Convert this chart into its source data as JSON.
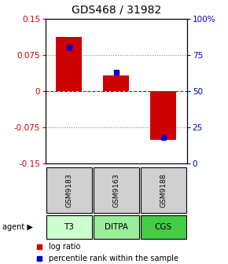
{
  "title": "GDS468 / 31982",
  "bar_values": [
    0.112,
    0.033,
    -0.1
  ],
  "percentile_values": [
    80,
    63,
    18
  ],
  "bar_color": "#cc0000",
  "percentile_color": "#0000cc",
  "sample_labels": [
    "GSM9183",
    "GSM9163",
    "GSM9188"
  ],
  "agent_labels": [
    "T3",
    "DITPA",
    "CGS"
  ],
  "agent_colors": [
    "#ccffcc",
    "#99ee99",
    "#44cc44"
  ],
  "ylim_left": [
    -0.15,
    0.15
  ],
  "ylim_right": [
    0,
    100
  ],
  "yticks_left": [
    -0.15,
    -0.075,
    0,
    0.075,
    0.15
  ],
  "yticks_right": [
    0,
    25,
    50,
    75,
    100
  ],
  "ytick_labels_right": [
    "0",
    "25",
    "50",
    "75",
    "100%"
  ],
  "hlines_dotted": [
    -0.075,
    0.075
  ],
  "hline_zero": 0,
  "bar_width": 0.55,
  "bg_color": "#ffffff",
  "plot_bg": "#ffffff",
  "legend_log_label": "log ratio",
  "legend_pct_label": "percentile rank within the sample",
  "agent_row_label": "agent",
  "left_tick_color": "#cc0000",
  "right_tick_color": "#0000cc",
  "title_fontsize": 10,
  "tick_fontsize": 7.5,
  "label_fontsize": 8
}
